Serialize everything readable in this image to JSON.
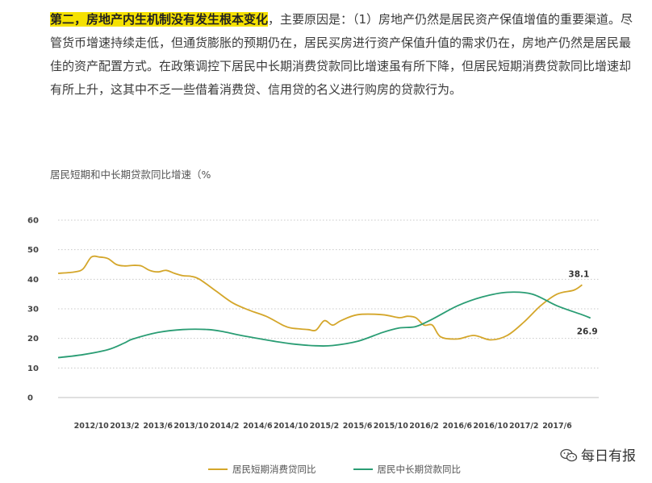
{
  "paragraph": {
    "highlight": "第二，房地产内生机制没有发生根本变化",
    "body": "，主要原因是：（1）房地产仍然是居民资产保值增值的重要渠道。尽管货币增速持续走低，但通货膨胀的预期仍在，居民买房进行资产保值升值的需求仍在，房地产仍然是居民最佳的资产配置方式。在政策调控下居民中长期消费贷款同比增速虽有所下降，但居民短期消费贷款同比增速却有所上升，这其中不乏一些借着消费贷、信用贷的名义进行购房的贷款行为。"
  },
  "watermark": {
    "icon": "wechat-icon",
    "text": "每日有报"
  },
  "chart_data": {
    "type": "line",
    "title": "居民短期和中长期贷款同比增速（%",
    "xlabel": "",
    "ylabel": "",
    "ylim": [
      0,
      60
    ],
    "yticks": [
      0,
      10,
      20,
      30,
      40,
      50,
      60
    ],
    "xlim": [
      "2012/6",
      "2017/11"
    ],
    "xticks": [
      "2012/10",
      "2013/2",
      "2013/6",
      "2013/10",
      "2014/2",
      "2014/6",
      "2014/10",
      "2015/2",
      "2015/6",
      "2015/10",
      "2016/2",
      "2016/6",
      "2016/10",
      "2017/2",
      "2017/6"
    ],
    "grid": true,
    "legend_position": "bottom",
    "series": [
      {
        "name": "居民短期消费贷同比",
        "color": "#d4a62a",
        "points": [
          [
            "2012/6",
            42
          ],
          [
            "2012/8",
            42.5
          ],
          [
            "2012/9",
            43.5
          ],
          [
            "2012/10",
            47.5
          ],
          [
            "2012/11",
            47.5
          ],
          [
            "2012/12",
            47
          ],
          [
            "2013/1",
            45
          ],
          [
            "2013/2",
            44.5
          ],
          [
            "2013/3",
            44.7
          ],
          [
            "2013/4",
            44.5
          ],
          [
            "2013/5",
            43
          ],
          [
            "2013/6",
            42.5
          ],
          [
            "2013/7",
            43
          ],
          [
            "2013/8",
            42
          ],
          [
            "2013/9",
            41.2
          ],
          [
            "2013/10",
            41
          ],
          [
            "2013/11",
            40
          ],
          [
            "2014/1",
            36
          ],
          [
            "2014/3",
            32
          ],
          [
            "2014/5",
            29.5
          ],
          [
            "2014/7",
            27.5
          ],
          [
            "2014/9",
            24.5
          ],
          [
            "2014/10",
            23.5
          ],
          [
            "2014/12",
            23
          ],
          [
            "2015/1",
            22.8
          ],
          [
            "2015/2",
            26
          ],
          [
            "2015/3",
            24.5
          ],
          [
            "2015/4",
            26
          ],
          [
            "2015/6",
            28
          ],
          [
            "2015/9",
            28
          ],
          [
            "2015/11",
            27
          ],
          [
            "2015/12",
            27.5
          ],
          [
            "2016/1",
            27
          ],
          [
            "2016/2",
            24.5
          ],
          [
            "2016/3",
            24.5
          ],
          [
            "2016/4",
            20.5
          ],
          [
            "2016/6",
            19.8
          ],
          [
            "2016/8",
            21
          ],
          [
            "2016/10",
            19.5
          ],
          [
            "2016/12",
            21
          ],
          [
            "2017/2",
            25.5
          ],
          [
            "2017/4",
            31
          ],
          [
            "2017/6",
            35
          ],
          [
            "2017/8",
            36.3
          ],
          [
            "2017/9",
            38.1
          ]
        ],
        "end_label": "38.1"
      },
      {
        "name": "居民中长期贷款同比",
        "color": "#2a9d74",
        "points": [
          [
            "2012/6",
            13.5
          ],
          [
            "2012/9",
            14.5
          ],
          [
            "2012/12",
            16.2
          ],
          [
            "2013/2",
            18.5
          ],
          [
            "2013/3",
            19.8
          ],
          [
            "2013/6",
            22
          ],
          [
            "2013/9",
            23
          ],
          [
            "2013/12",
            23
          ],
          [
            "2014/2",
            22.2
          ],
          [
            "2014/4",
            21
          ],
          [
            "2014/7",
            19.5
          ],
          [
            "2014/10",
            18.2
          ],
          [
            "2015/1",
            17.5
          ],
          [
            "2015/3",
            17.6
          ],
          [
            "2015/6",
            19
          ],
          [
            "2015/9",
            22
          ],
          [
            "2015/11",
            23.5
          ],
          [
            "2016/1",
            24
          ],
          [
            "2016/3",
            26.5
          ],
          [
            "2016/6",
            31
          ],
          [
            "2016/9",
            34
          ],
          [
            "2016/12",
            35.6
          ],
          [
            "2017/3",
            35
          ],
          [
            "2017/6",
            31
          ],
          [
            "2017/9",
            28
          ],
          [
            "2017/10",
            26.9
          ]
        ],
        "end_label": "26.9"
      }
    ]
  }
}
